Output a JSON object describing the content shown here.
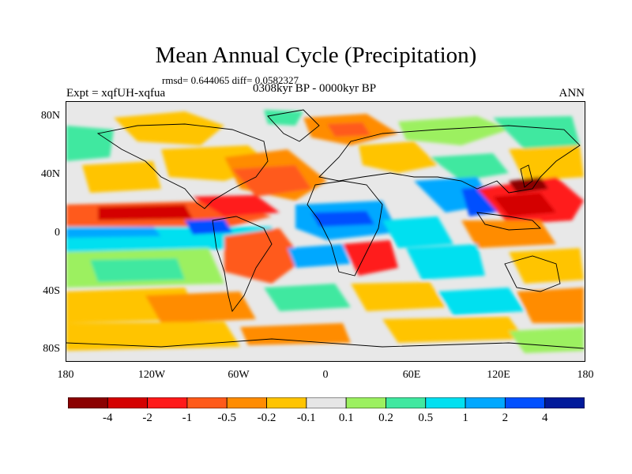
{
  "title": "Mean Annual Cycle (Precipitation)",
  "stats": "rmsd= 0.644065 diff= 0.0582327",
  "experiment": "Expt = xqfUH-xqfua",
  "period": "0308kyr BP - 0000kyr BP",
  "season": "ANN",
  "lat_ticks": [
    "80N",
    "40N",
    "0",
    "40S",
    "80S"
  ],
  "lon_ticks": [
    "180",
    "120W",
    "60W",
    "0",
    "60E",
    "120E",
    "180"
  ],
  "colorbar": {
    "labels": [
      "-4",
      "-2",
      "-1",
      "-0.5",
      "-0.2",
      "-0.1",
      "0.1",
      "0.2",
      "0.5",
      "1",
      "2",
      "4"
    ],
    "colors": [
      "#8b0000",
      "#d40000",
      "#ff1a1a",
      "#ff5a1a",
      "#ff8c00",
      "#ffc400",
      "#e6e6e6",
      "#9cf060",
      "#40e8a0",
      "#00e0f0",
      "#00a8ff",
      "#0050ff",
      "#001a9a"
    ]
  }
}
